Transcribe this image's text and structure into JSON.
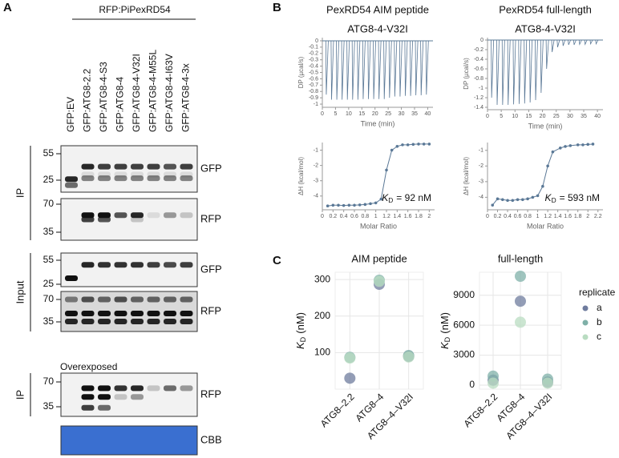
{
  "panel_labels": [
    "A",
    "B",
    "C"
  ],
  "blot": {
    "construct": "RFP:PiPexRD54",
    "lanes": [
      "GFP:EV",
      "GFP:ATG8-2.2",
      "GFP:ATG8-4-S3",
      "GFP:ATG8-4",
      "GFP:ATG8-4-V32I",
      "GFP:ATG8-4-M55L",
      "GFP:ATG8-4-I63V",
      "GFP:ATG8-4-3x"
    ],
    "groups": [
      "IP",
      "Input",
      "IP"
    ],
    "sections": [
      {
        "markers": [
          "55",
          "25"
        ],
        "antibody": "GFP"
      },
      {
        "markers": [
          "70",
          "35"
        ],
        "antibody": "RFP"
      },
      {
        "markers": [
          "55",
          "25"
        ],
        "antibody": "GFP"
      },
      {
        "markers": [
          "70",
          "35"
        ],
        "antibody": "RFP"
      },
      {
        "markers": [
          "70",
          "35"
        ],
        "antibody": "RFP"
      }
    ],
    "overexposed": "Overexposed",
    "cbb": "CBB"
  },
  "chart_data": [
    {
      "type": "line",
      "title": "PexRD54 AIM peptide",
      "subtitle": "ATG8-4-V32I",
      "x_label": "Time (min)",
      "y_label": "DP (µcal/s)",
      "x": [
        1.5,
        3.5,
        5.5,
        7.5,
        9.5,
        11.5,
        13.5,
        15.5,
        17.5,
        19.5,
        21.5,
        23.5,
        25.5,
        27.5,
        29.5,
        31.5,
        33.5,
        35.5,
        37.5,
        39.5
      ],
      "series": [
        {
          "color": "#5a7896",
          "values": [
            -0.85,
            -0.93,
            -0.93,
            -0.93,
            -0.93,
            -0.93,
            -0.93,
            -0.92,
            -0.92,
            -0.92,
            -0.92,
            -0.92,
            -0.9,
            -0.88,
            -0.88,
            -0.87,
            -0.87,
            -0.86,
            -0.86,
            -0.85
          ]
        }
      ],
      "xlim": [
        0,
        42
      ],
      "xticks": [
        0,
        5,
        10,
        15,
        20,
        25,
        30,
        35,
        40
      ],
      "ylim": [
        -1.05,
        0.05
      ],
      "yticks": [
        0,
        -0.1,
        -0.2,
        -0.3,
        -0.4,
        -0.5,
        -0.6,
        -0.7,
        -0.8,
        -0.9,
        -1
      ]
    },
    {
      "type": "line",
      "title": "PexRD54 full-length",
      "subtitle": "ATG8-4-V32I",
      "x_label": "Time (min)",
      "y_label": "DP (µcal/s)",
      "x": [
        1.5,
        3.5,
        5.5,
        7.5,
        9.5,
        11.5,
        13.5,
        15.5,
        17.5,
        19.5,
        21.5,
        23.5,
        25.5,
        27.5,
        29.5,
        31.5,
        33.5,
        35.5,
        37.5,
        39.5
      ],
      "series": [
        {
          "color": "#5a7896",
          "values": [
            -1.2,
            -1.35,
            -1.35,
            -1.35,
            -1.34,
            -1.33,
            -1.32,
            -1.3,
            -1.25,
            -1.1,
            -0.6,
            -0.25,
            -0.15,
            -0.12,
            -0.1,
            -0.1,
            -0.09,
            -0.09,
            -0.08,
            -0.08
          ]
        }
      ],
      "xlim": [
        0,
        42
      ],
      "xticks": [
        0,
        5,
        10,
        15,
        20,
        25,
        30,
        35,
        40
      ],
      "ylim": [
        -1.45,
        0.05
      ],
      "yticks": [
        0,
        -0.2,
        -0.4,
        -0.6,
        -0.8,
        -1,
        -1.2,
        -1.4
      ]
    },
    {
      "type": "scatter",
      "x_label": "Molar Ratio",
      "y_label": "ΔH (kcal/mol)",
      "annotation": {
        "main": "K",
        "sub": "D",
        "rest": "= 92 nM"
      },
      "x": [
        0.1,
        0.2,
        0.3,
        0.4,
        0.5,
        0.6,
        0.7,
        0.8,
        0.9,
        1.0,
        1.1,
        1.2,
        1.3,
        1.4,
        1.5,
        1.6,
        1.7,
        1.8,
        1.9,
        2.0
      ],
      "series": [
        {
          "color": "#5a7896",
          "values": [
            -4.65,
            -4.6,
            -4.6,
            -4.62,
            -4.6,
            -4.6,
            -4.58,
            -4.55,
            -4.5,
            -4.45,
            -4.2,
            -2.3,
            -1.0,
            -0.75,
            -0.65,
            -0.65,
            -0.62,
            -0.6,
            -0.6,
            -0.6
          ]
        }
      ],
      "xlim": [
        0,
        2.1
      ],
      "xticks": [
        0,
        0.2,
        0.4,
        0.6,
        0.8,
        1,
        1.2,
        1.4,
        1.6,
        1.8,
        2
      ],
      "ylim": [
        -4.9,
        -0.5
      ],
      "yticks": [
        -1,
        -2,
        -3,
        -4
      ]
    },
    {
      "type": "scatter",
      "x_label": "Molar Ratio",
      "y_label": "ΔH (kcal/mol)",
      "annotation": {
        "main": "K",
        "sub": "D",
        "rest": "= 593 nM"
      },
      "x": [
        0.1,
        0.2,
        0.3,
        0.4,
        0.5,
        0.6,
        0.7,
        0.8,
        0.9,
        1.0,
        1.1,
        1.2,
        1.3,
        1.45,
        1.55,
        1.65,
        1.8,
        1.9,
        2.0,
        2.1
      ],
      "series": [
        {
          "color": "#5a7896",
          "values": [
            -4.5,
            -4.1,
            -4.15,
            -4.2,
            -4.2,
            -4.15,
            -4.15,
            -4.1,
            -4.0,
            -3.9,
            -3.3,
            -2.0,
            -1.1,
            -0.85,
            -0.75,
            -0.7,
            -0.65,
            -0.65,
            -0.62,
            -0.6
          ]
        }
      ],
      "xlim": [
        0,
        2.3
      ],
      "xticks": [
        0,
        0.2,
        0.4,
        0.6,
        0.8,
        1,
        1.2,
        1.4,
        1.6,
        1.8,
        2,
        2.2
      ],
      "ylim": [
        -4.8,
        -0.5
      ],
      "yticks": [
        -1,
        -2,
        -3,
        -4
      ]
    },
    {
      "type": "dot",
      "title": "AIM peptide",
      "y_label": {
        "main": "K",
        "sub": "D",
        "rest": "(nM)"
      },
      "categories": [
        "ATG8–2.2",
        "ATG8–4",
        "ATG8–4–V32I"
      ],
      "series": [
        {
          "name": "a",
          "color": "#6f7c9e",
          "values": [
            30,
            287,
            90
          ]
        },
        {
          "name": "b",
          "color": "#7fb0a8",
          "values": [
            87,
            298,
            92
          ]
        },
        {
          "name": "c",
          "color": "#b9dcc1",
          "values": [
            85,
            295,
            88
          ]
        }
      ],
      "ylim": [
        0,
        320
      ],
      "yticks": [
        100,
        200,
        300
      ],
      "grid": true
    },
    {
      "type": "dot",
      "title": "full-length",
      "y_label": {
        "main": "K",
        "sub": "D",
        "rest": "(nM)"
      },
      "categories": [
        "ATG8–2.2",
        "ATG8–4",
        "ATG8–4–V32I"
      ],
      "series": [
        {
          "name": "a",
          "color": "#6f7c9e",
          "values": [
            500,
            8400,
            300
          ]
        },
        {
          "name": "b",
          "color": "#7fb0a8",
          "values": [
            900,
            10900,
            600
          ]
        },
        {
          "name": "c",
          "color": "#b9dcc1",
          "values": [
            200,
            6300,
            200
          ]
        }
      ],
      "ylim": [
        -400,
        11300
      ],
      "yticks": [
        0,
        3000,
        6000,
        9000
      ],
      "grid": true,
      "legend": "right",
      "legend_title": "replicate"
    }
  ]
}
